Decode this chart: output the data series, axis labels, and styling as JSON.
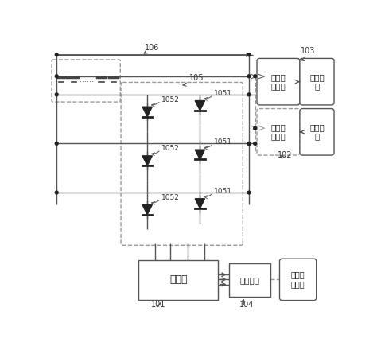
{
  "bg": "#ffffff",
  "lc": "#555555",
  "dc": "#999999",
  "texts": {
    "discharge": "放电输\n出接口",
    "charge_in": "充电输\n入接口",
    "load": "负载单\n元",
    "charge_unit": "充电单\n元",
    "controller": "控制器",
    "comm": "通信接口",
    "status": "状态控\n制接口",
    "n103": "103",
    "n102": "102",
    "n101": "101",
    "n104": "104",
    "n105": "105",
    "n106": "106",
    "n1051": "1051",
    "n1052": "1052"
  },
  "figsize": [
    4.74,
    4.45
  ],
  "dpi": 100
}
